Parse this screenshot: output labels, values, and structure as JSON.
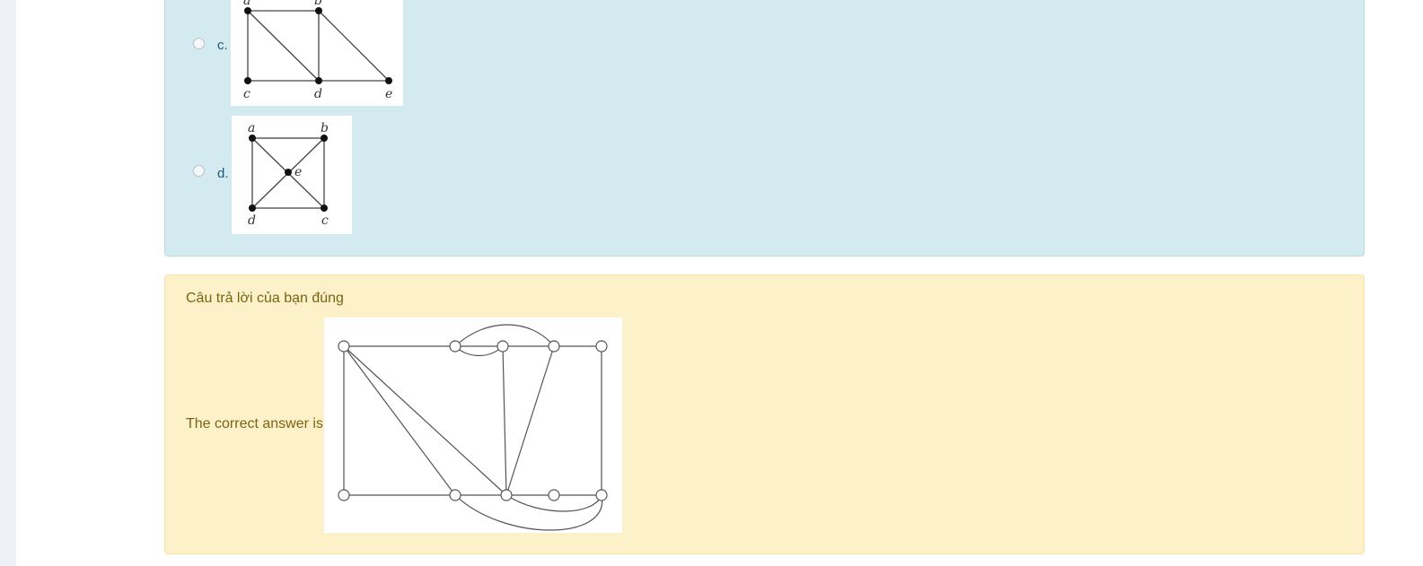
{
  "options": [
    {
      "letter": "c.",
      "nodes": {
        "a": "a",
        "b": "b",
        "c": "c",
        "d": "d",
        "e": "e"
      }
    },
    {
      "letter": "d.",
      "nodes": {
        "a": "a",
        "b": "b",
        "c": "c",
        "d": "d",
        "e": "e"
      }
    }
  ],
  "feedback": {
    "result": "Câu trả lời của bạn đúng",
    "correct_label": "The correct answer is:"
  },
  "colors": {
    "question_bg": "#d3ebf0",
    "feedback_bg": "#fdf1c9",
    "feedback_text": "#7a6413",
    "option_text": "#1e5a75"
  }
}
